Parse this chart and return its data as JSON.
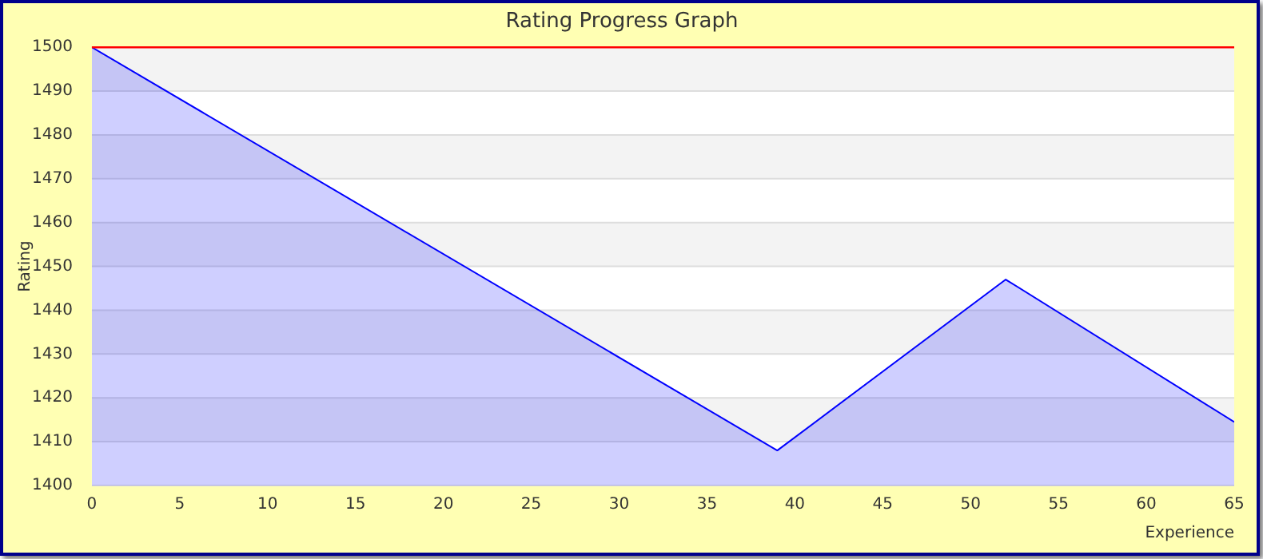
{
  "chart_data": {
    "type": "area",
    "title": "Rating Progress Graph",
    "xlabel": "Experience",
    "ylabel": "Rating",
    "x": [
      0,
      39,
      52,
      65
    ],
    "series": [
      {
        "color": "#0000ff",
        "values": [
          1500,
          1408,
          1447,
          1414.5
        ]
      }
    ],
    "xlim": [
      0,
      65
    ],
    "xticks": [
      0,
      5,
      10,
      15,
      20,
      25,
      30,
      35,
      40,
      45,
      50,
      55,
      60,
      65
    ],
    "ylim": [
      1400,
      1500
    ],
    "yticks": [
      1400,
      1410,
      1420,
      1430,
      1440,
      1450,
      1460,
      1470,
      1480,
      1490,
      1500
    ],
    "ref_lines": [
      {
        "axis": "y",
        "value": 1500,
        "color": "#ff0000"
      }
    ],
    "grid": "y",
    "legend": false,
    "marker": "none",
    "line_style": "solid"
  }
}
